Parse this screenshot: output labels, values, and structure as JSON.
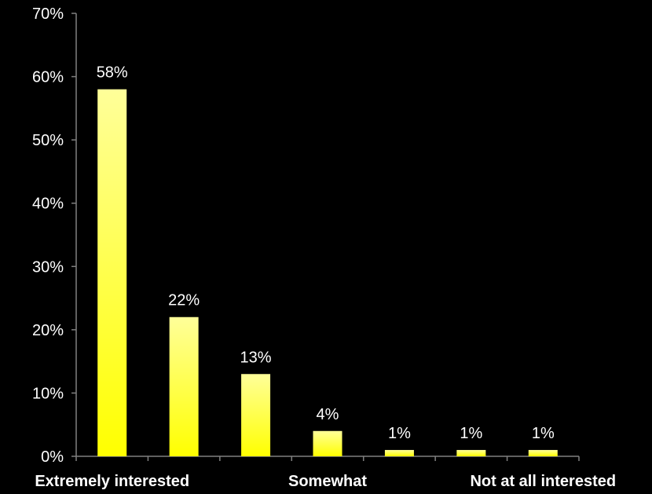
{
  "chart_data": {
    "type": "bar",
    "categories": [
      "Extremely interested",
      "",
      "",
      "Somewhat",
      "",
      "",
      "Not at all interested"
    ],
    "values": [
      58,
      22,
      13,
      4,
      1,
      1,
      1
    ],
    "data_labels": [
      "58%",
      "22%",
      "13%",
      "4%",
      "1%",
      "1%",
      "1%"
    ],
    "y_ticks": [
      "0%",
      "10%",
      "20%",
      "30%",
      "40%",
      "50%",
      "60%",
      "70%"
    ],
    "ylim": [
      0,
      70
    ],
    "title": "",
    "xlabel": "",
    "ylabel": "",
    "grid": false,
    "legend": "none",
    "colors": {
      "background": "#000000",
      "bar_top": "#ffff99",
      "bar_bottom": "#ffff00",
      "axis": "#808080",
      "text": "#ffffff"
    }
  }
}
